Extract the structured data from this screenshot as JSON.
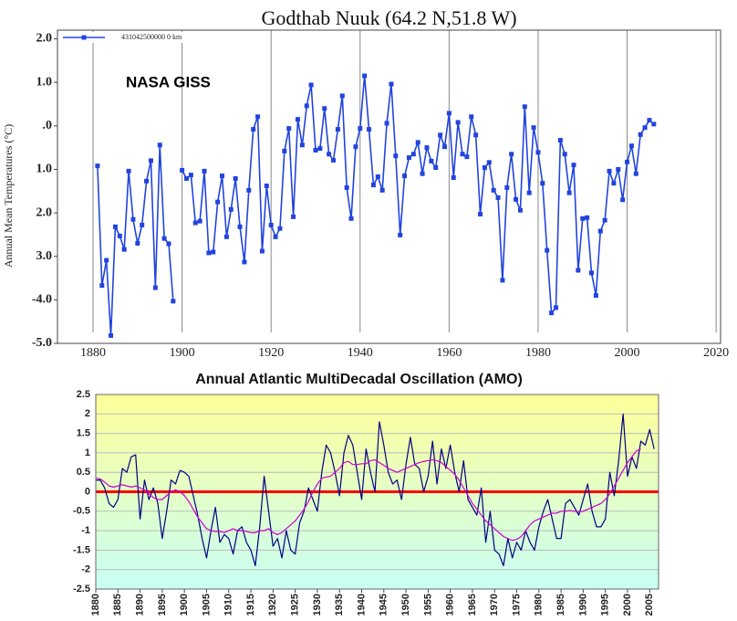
{
  "chart_data": [
    {
      "type": "line",
      "title": "Godthab Nuuk (64.2 N,51.8 W)",
      "y_label": "Annual Mean Temperatures (°C)",
      "annotation": "NASA GISS",
      "legend": "upper left",
      "grid": "x",
      "markers": true,
      "xlim": [
        1872,
        2021
      ],
      "ylim": [
        -5,
        2.2
      ],
      "xticks": [
        1880,
        1900,
        1920,
        1940,
        1960,
        1980,
        2000,
        2020
      ],
      "yticks": [
        {
          "value": 2,
          "label": "2.0"
        },
        {
          "value": 1,
          "label": "1.0"
        },
        {
          "value": 0,
          "label": ".0"
        },
        {
          "value": -1,
          "label": "1.0"
        },
        {
          "value": -2,
          "label": "2.0"
        },
        {
          "value": -3,
          "label": "3.0"
        },
        {
          "value": -4,
          "label": "-4.0"
        },
        {
          "value": -5,
          "label": "-5.0"
        }
      ],
      "x": [
        1881,
        1882,
        1883,
        1884,
        1885,
        1886,
        1887,
        1888,
        1889,
        1890,
        1891,
        1892,
        1893,
        1894,
        1895,
        1896,
        1897,
        1898,
        1899,
        1900,
        1901,
        1902,
        1903,
        1904,
        1905,
        1906,
        1907,
        1908,
        1909,
        1910,
        1911,
        1912,
        1913,
        1914,
        1915,
        1916,
        1917,
        1918,
        1919,
        1920,
        1921,
        1922,
        1923,
        1924,
        1925,
        1926,
        1927,
        1928,
        1929,
        1930,
        1931,
        1932,
        1933,
        1934,
        1935,
        1936,
        1937,
        1938,
        1939,
        1940,
        1941,
        1942,
        1943,
        1944,
        1945,
        1946,
        1947,
        1948,
        1949,
        1950,
        1951,
        1952,
        1953,
        1954,
        1955,
        1956,
        1957,
        1958,
        1959,
        1960,
        1961,
        1962,
        1963,
        1964,
        1965,
        1966,
        1967,
        1968,
        1969,
        1970,
        1971,
        1972,
        1973,
        1974,
        1975,
        1976,
        1977,
        1978,
        1979,
        1980,
        1981,
        1982,
        1983,
        1984,
        1985,
        1986,
        1987,
        1988,
        1989,
        1990,
        1991,
        1992,
        1993,
        1994,
        1995,
        1996,
        1997,
        1998,
        1999,
        2000,
        2001,
        2002,
        2003,
        2004,
        2005,
        2006
      ],
      "series": [
        {
          "name": "431042500000  0 km",
          "color": "#2244dd",
          "values": [
            -0.92,
            -3.67,
            -3.09,
            -4.82,
            -2.32,
            -2.53,
            -2.84,
            -1.04,
            -2.15,
            -2.7,
            -2.28,
            -1.27,
            -0.8,
            -3.72,
            -0.44,
            -2.59,
            -2.71,
            -4.03,
            null,
            -1.02,
            -1.21,
            -1.13,
            -2.23,
            -2.19,
            -1.04,
            -2.92,
            -2.9,
            -1.75,
            -1.15,
            -2.55,
            -1.92,
            -1.21,
            -2.32,
            -3.13,
            -1.48,
            -0.08,
            0.21,
            -2.88,
            -1.38,
            -2.28,
            -2.55,
            -2.36,
            -0.58,
            -0.06,
            -2.09,
            0.15,
            -0.44,
            0.46,
            0.94,
            -0.56,
            -0.52,
            0.4,
            -0.65,
            -0.79,
            -0.08,
            0.69,
            -1.42,
            -2.13,
            -0.48,
            -0.06,
            1.15,
            -0.08,
            -1.36,
            -1.17,
            -1.48,
            0.06,
            0.96,
            -0.69,
            -2.51,
            -1.15,
            -0.73,
            -0.65,
            -0.38,
            -1.1,
            -0.5,
            -0.81,
            -0.96,
            -0.21,
            -0.48,
            0.29,
            -1.19,
            0.08,
            -0.65,
            -0.71,
            0.21,
            -0.21,
            -2.03,
            -0.96,
            -0.84,
            -1.48,
            -1.65,
            -3.55,
            -1.42,
            -0.65,
            -1.69,
            -1.94,
            0.44,
            -1.54,
            -0.04,
            -0.61,
            -1.32,
            -2.86,
            -4.3,
            -4.18,
            -0.33,
            -0.65,
            -1.54,
            -0.9,
            -3.32,
            -2.13,
            -2.11,
            -3.38,
            -3.9,
            -2.42,
            -2.17,
            -1.04,
            -1.32,
            -1.0,
            -1.7,
            -0.83,
            -0.46,
            -1.1,
            -0.2,
            -0.04,
            0.13,
            0.04
          ]
        }
      ]
    },
    {
      "type": "line",
      "title": "Annual Atlantic MultiDecadal Oscillation (AMO)",
      "grid": "y",
      "background": [
        "#ffff99",
        "#c8fff4"
      ],
      "reference_line": {
        "value": 0,
        "color": "#ff0000"
      },
      "xlim": [
        1880,
        2007
      ],
      "ylim": [
        -2.5,
        2.5
      ],
      "xticks": [
        1880,
        1885,
        1890,
        1895,
        1900,
        1905,
        1910,
        1915,
        1920,
        1925,
        1930,
        1935,
        1940,
        1945,
        1950,
        1955,
        1960,
        1965,
        1970,
        1975,
        1980,
        1985,
        1990,
        1995,
        2000,
        2005
      ],
      "yticks": [
        2.5,
        2,
        1.5,
        1,
        0.5,
        0,
        -0.5,
        -1,
        -1.5,
        -2,
        -2.5
      ],
      "x": [
        1880,
        1881,
        1882,
        1883,
        1884,
        1885,
        1886,
        1887,
        1888,
        1889,
        1890,
        1891,
        1892,
        1893,
        1894,
        1895,
        1896,
        1897,
        1898,
        1899,
        1900,
        1901,
        1902,
        1903,
        1904,
        1905,
        1906,
        1907,
        1908,
        1909,
        1910,
        1911,
        1912,
        1913,
        1914,
        1915,
        1916,
        1917,
        1918,
        1919,
        1920,
        1921,
        1922,
        1923,
        1924,
        1925,
        1926,
        1927,
        1928,
        1929,
        1930,
        1931,
        1932,
        1933,
        1934,
        1935,
        1936,
        1937,
        1938,
        1939,
        1940,
        1941,
        1942,
        1943,
        1944,
        1945,
        1946,
        1947,
        1948,
        1949,
        1950,
        1951,
        1952,
        1953,
        1954,
        1955,
        1956,
        1957,
        1958,
        1959,
        1960,
        1961,
        1962,
        1963,
        1964,
        1965,
        1966,
        1967,
        1968,
        1969,
        1970,
        1971,
        1972,
        1973,
        1974,
        1975,
        1976,
        1977,
        1978,
        1979,
        1980,
        1981,
        1982,
        1983,
        1984,
        1985,
        1986,
        1987,
        1988,
        1989,
        1990,
        1991,
        1992,
        1993,
        1994,
        1995,
        1996,
        1997,
        1998,
        1999,
        2000,
        2001,
        2002,
        2003,
        2004,
        2005,
        2006
      ],
      "series": [
        {
          "color": "#000080",
          "values": [
            0.3,
            0.3,
            0.1,
            -0.3,
            -0.4,
            -0.2,
            0.6,
            0.5,
            0.9,
            0.95,
            -0.7,
            0.3,
            -0.2,
            0.1,
            -0.3,
            -1.2,
            -0.5,
            0.3,
            0.2,
            0.55,
            0.5,
            0.4,
            -0.1,
            -0.6,
            -1.2,
            -1.7,
            -1.0,
            -0.4,
            -1.3,
            -1.1,
            -1.2,
            -1.6,
            -1.0,
            -0.9,
            -1.3,
            -1.5,
            -1.9,
            -0.9,
            0.4,
            -0.5,
            -1.4,
            -1.2,
            -1.7,
            -1.0,
            -1.5,
            -1.6,
            -0.8,
            -0.5,
            0.1,
            -0.2,
            -0.5,
            0.5,
            1.2,
            1.0,
            0.5,
            -0.1,
            1.0,
            1.45,
            1.2,
            0.5,
            -0.2,
            1.1,
            0.5,
            0.0,
            1.8,
            1.2,
            0.5,
            0.2,
            0.3,
            -0.2,
            0.7,
            1.4,
            0.7,
            0.6,
            0.0,
            0.4,
            1.3,
            0.2,
            1.1,
            0.6,
            1.2,
            0.5,
            0.0,
            0.8,
            -0.2,
            -0.4,
            -0.6,
            0.1,
            -1.3,
            -0.5,
            -1.5,
            -1.6,
            -1.9,
            -1.2,
            -1.7,
            -1.3,
            -1.5,
            -1.0,
            -1.3,
            -1.5,
            -0.9,
            -0.5,
            -0.2,
            -0.7,
            -1.2,
            -1.2,
            -0.3,
            -0.2,
            -0.4,
            -0.6,
            -0.2,
            0.2,
            -0.5,
            -0.9,
            -0.9,
            -0.7,
            0.5,
            -0.1,
            0.8,
            2.0,
            0.4,
            0.9,
            0.6,
            1.3,
            1.2,
            1.6,
            1.1
          ]
        },
        {
          "color": "#cc00cc",
          "values": [
            0.35,
            0.33,
            0.25,
            0.15,
            0.12,
            0.15,
            0.18,
            0.15,
            0.12,
            0.15,
            0.1,
            0.05,
            -0.05,
            -0.15,
            -0.2,
            -0.2,
            -0.1,
            0.0,
            0.05,
            0.0,
            -0.1,
            -0.25,
            -0.45,
            -0.65,
            -0.8,
            -0.95,
            -1.0,
            -1.02,
            -1.02,
            -1.05,
            -1.0,
            -0.95,
            -1.0,
            -1.0,
            -1.02,
            -1.05,
            -1.05,
            -1.0,
            -1.0,
            -0.95,
            -1.05,
            -1.1,
            -1.05,
            -0.95,
            -0.85,
            -0.75,
            -0.6,
            -0.45,
            -0.25,
            0.0,
            0.2,
            0.35,
            0.38,
            0.4,
            0.5,
            0.6,
            0.75,
            0.78,
            0.7,
            0.7,
            0.72,
            0.72,
            0.8,
            0.82,
            0.75,
            0.68,
            0.6,
            0.55,
            0.5,
            0.55,
            0.6,
            0.65,
            0.7,
            0.75,
            0.78,
            0.8,
            0.82,
            0.8,
            0.75,
            0.65,
            0.55,
            0.45,
            0.3,
            0.1,
            -0.1,
            -0.3,
            -0.45,
            -0.6,
            -0.75,
            -0.85,
            -0.95,
            -1.05,
            -1.15,
            -1.2,
            -1.25,
            -1.22,
            -1.15,
            -1.0,
            -0.85,
            -0.75,
            -0.7,
            -0.65,
            -0.6,
            -0.55,
            -0.55,
            -0.5,
            -0.5,
            -0.48,
            -0.5,
            -0.52,
            -0.5,
            -0.45,
            -0.4,
            -0.35,
            -0.3,
            -0.2,
            -0.05,
            0.15,
            0.35,
            0.55,
            0.75,
            0.9,
            1.05,
            1.1,
            null,
            null,
            null
          ]
        }
      ]
    }
  ]
}
